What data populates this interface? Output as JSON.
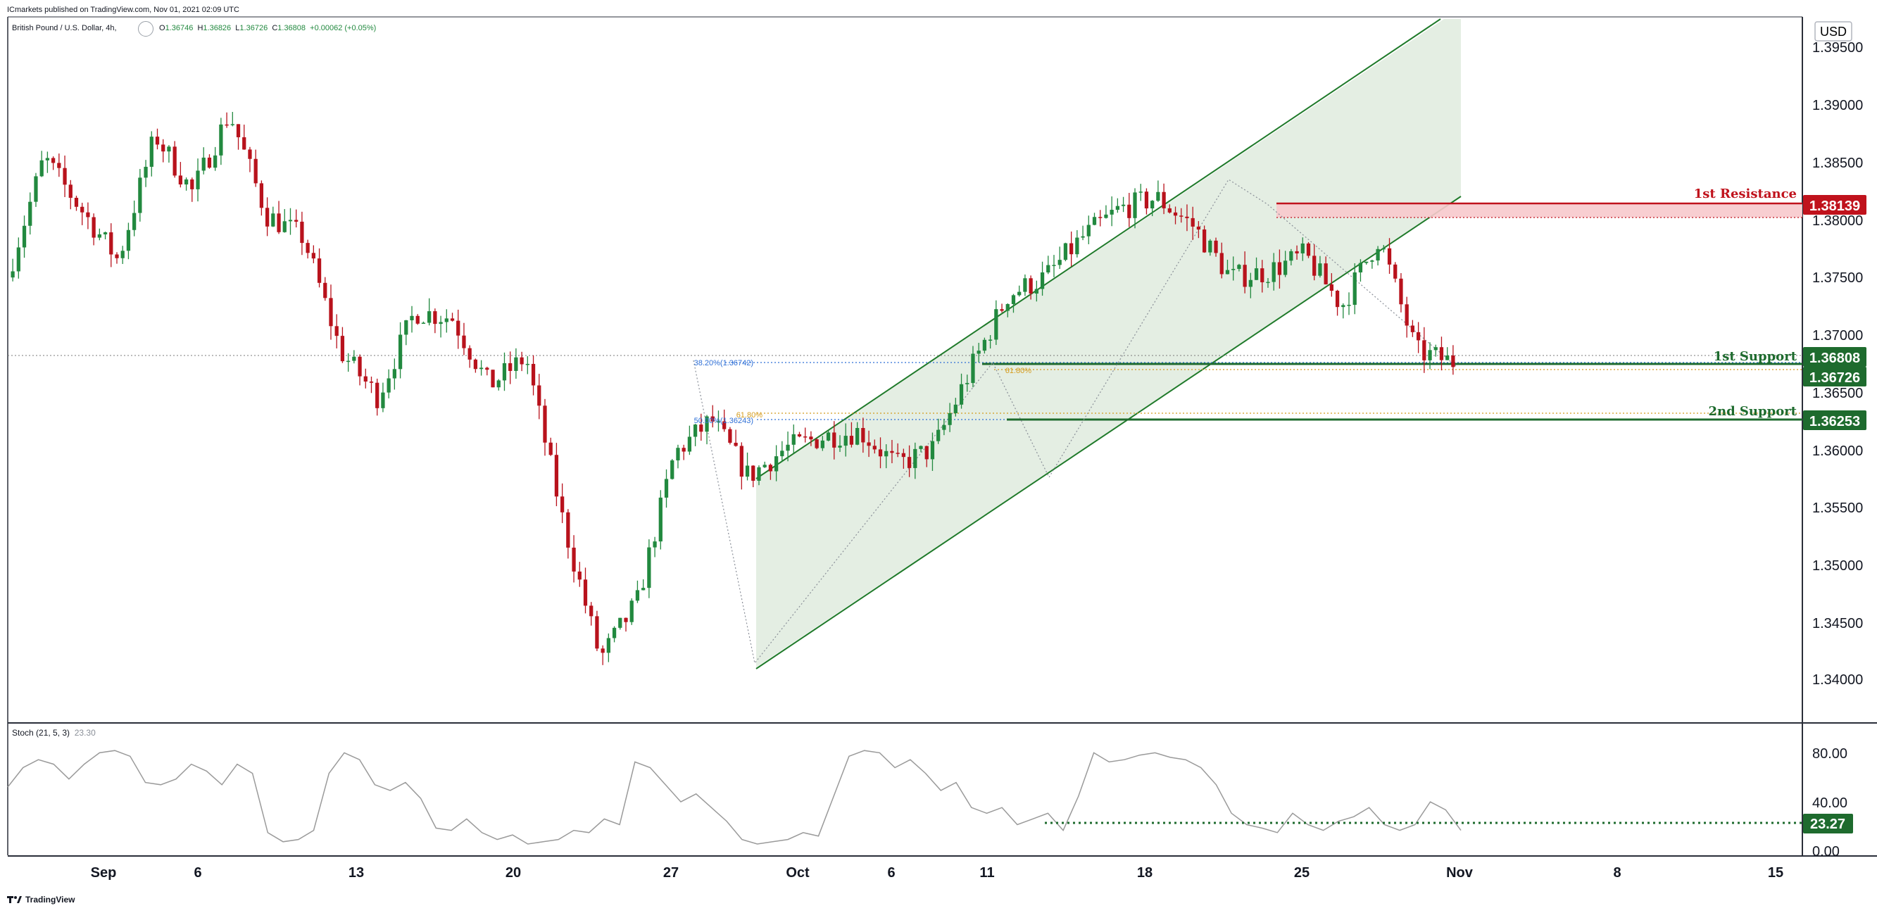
{
  "header": {
    "published": "ICmarkets published on TradingView.com, Nov 01, 2021 02:09 UTC",
    "symbol": "British Pound / U.S. Dollar, 4h,",
    "ohlc": {
      "o_label": "O",
      "o": "1.36746",
      "h_label": "H",
      "h": "1.36826",
      "l_label": "L",
      "l": "1.36726",
      "c_label": "C",
      "c": "1.36808",
      "change": "+0.00062 (+0.05%)"
    },
    "currency": "USD"
  },
  "footer": {
    "logo_text": "TradingView"
  },
  "colors": {
    "up": "#22893f",
    "down": "#b8121c",
    "channel_line": "#1f7a2a",
    "channel_fill": "#dbe8d9",
    "resistance": "#c0121c",
    "resistance_zone": "#f7c9cc",
    "support": "#1e6b2e",
    "fib_blue": "#2e6fd6",
    "fib_gold": "#d49b1c",
    "stoch": "#9a9a9a"
  },
  "chart_data": {
    "type": "candlestick",
    "y_axis": {
      "ylim": [
        1.3365,
        1.3982
      ],
      "ticks": [
        "1.39500",
        "1.39000",
        "1.38500",
        "1.38000",
        "1.37500",
        "1.37000",
        "1.36500",
        "1.36000",
        "1.35500",
        "1.35000",
        "1.34500",
        "1.34000"
      ]
    },
    "x_axis": {
      "ticks": [
        "Sep",
        "6",
        "13",
        "20",
        "27",
        "Oct",
        "6",
        "11",
        "18",
        "25",
        "Nov",
        "8",
        "15"
      ]
    },
    "key_prices": [
      {
        "label": "Sep 1",
        "price": 1.3755
      },
      {
        "label": "Sep 6",
        "price": 1.386
      },
      {
        "label": "Sep 8",
        "price": 1.3815
      },
      {
        "label": "Sep 9",
        "price": 1.377
      },
      {
        "label": "Sep 13",
        "price": 1.388
      },
      {
        "label": "Sep 14",
        "price": 1.383
      },
      {
        "label": "Sep 15",
        "price": 1.39
      },
      {
        "label": "Sep 16",
        "price": 1.381
      },
      {
        "label": "Sep 17",
        "price": 1.379
      },
      {
        "label": "Sep 20",
        "price": 1.369
      },
      {
        "label": "Sep 22",
        "price": 1.365
      },
      {
        "label": "Sep 23",
        "price": 1.3725
      },
      {
        "label": "Sep 24",
        "price": 1.372
      },
      {
        "label": "Sep 27",
        "price": 1.366
      },
      {
        "label": "Sep 28",
        "price": 1.3685
      },
      {
        "label": "Sep 29",
        "price": 1.354
      },
      {
        "label": "Sep 30",
        "price": 1.342
      },
      {
        "label": "Oct 1",
        "price": 1.347
      },
      {
        "label": "Oct 4",
        "price": 1.36
      },
      {
        "label": "Oct 5",
        "price": 1.363
      },
      {
        "label": "Oct 6",
        "price": 1.358
      },
      {
        "label": "Oct 7",
        "price": 1.3605
      },
      {
        "label": "Oct 8",
        "price": 1.3615
      },
      {
        "label": "Oct 11",
        "price": 1.362
      },
      {
        "label": "Oct 12",
        "price": 1.359
      },
      {
        "label": "Oct 13",
        "price": 1.3605
      },
      {
        "label": "Oct 14",
        "price": 1.3675
      },
      {
        "label": "Oct 15",
        "price": 1.374
      },
      {
        "label": "Oct 18",
        "price": 1.3755
      },
      {
        "label": "Oct 19",
        "price": 1.379
      },
      {
        "label": "Oct 20",
        "price": 1.3815
      },
      {
        "label": "Oct 21",
        "price": 1.3825
      },
      {
        "label": "Oct 22",
        "price": 1.38
      },
      {
        "label": "Oct 25",
        "price": 1.3755
      },
      {
        "label": "Oct 26",
        "price": 1.376
      },
      {
        "label": "Oct 27",
        "price": 1.3775
      },
      {
        "label": "Oct 28",
        "price": 1.373
      },
      {
        "label": "Oct 29",
        "price": 1.379
      },
      {
        "label": "Oct 29 close",
        "price": 1.369
      },
      {
        "label": "Nov 1",
        "price": 1.36808
      }
    ],
    "levels": [
      {
        "name": "1st Resistance",
        "price": "1.38139",
        "kind": "resistance"
      },
      {
        "name": "1st Support",
        "price": "1.36726",
        "kind": "support"
      },
      {
        "name": "2nd Support",
        "price": "1.36253",
        "kind": "support"
      }
    ],
    "last_price": "1.36808",
    "fib_labels": {
      "f382": "38.20%(1.36742)",
      "f500": "50.00%(1.36243)",
      "g618_a": "61.80%",
      "g618_b": "61.80%"
    },
    "stoch": {
      "label": "Stoch (21, 5, 3)",
      "value_label": "23.30",
      "current": "23.27",
      "ylim": [
        0,
        100
      ],
      "ticks": [
        "80.00",
        "40.00",
        "0.00"
      ],
      "values": [
        58,
        75,
        82,
        78,
        65,
        78,
        88,
        90,
        85,
        62,
        60,
        65,
        78,
        72,
        60,
        78,
        70,
        18,
        10,
        12,
        20,
        70,
        88,
        82,
        60,
        55,
        62,
        48,
        22,
        20,
        30,
        18,
        12,
        16,
        8,
        10,
        12,
        20,
        18,
        30,
        25,
        80,
        75,
        60,
        45,
        52,
        40,
        28,
        12,
        8,
        10,
        12,
        18,
        15,
        50,
        85,
        90,
        88,
        75,
        82,
        70,
        55,
        62,
        40,
        35,
        40,
        25,
        30,
        35,
        20,
        50,
        88,
        80,
        82,
        86,
        88,
        84,
        82,
        75,
        60,
        35,
        25,
        22,
        18,
        35,
        25,
        20,
        28,
        32,
        40,
        25,
        20,
        25,
        45,
        38,
        20
      ]
    }
  }
}
